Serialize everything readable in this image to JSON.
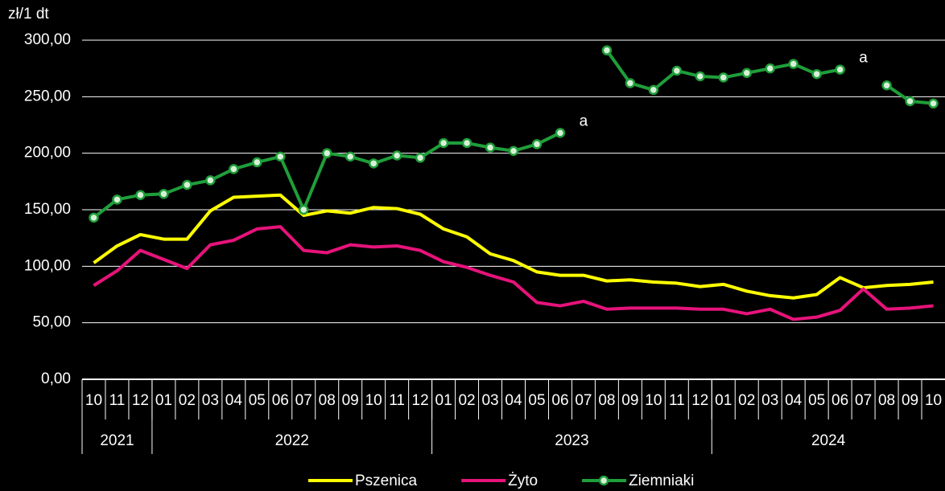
{
  "chart_data": {
    "type": "line",
    "y_axis_label": "zł/1 dt",
    "categories": [
      "10",
      "11",
      "12",
      "01",
      "02",
      "03",
      "04",
      "05",
      "06",
      "07",
      "08",
      "09",
      "10",
      "11",
      "12",
      "01",
      "02",
      "03",
      "04",
      "05",
      "06",
      "07",
      "08",
      "09",
      "10",
      "11",
      "12",
      "01",
      "02",
      "03",
      "04",
      "05",
      "06",
      "07",
      "08",
      "09",
      "10"
    ],
    "year_groups": [
      {
        "label": "2021",
        "count": 3
      },
      {
        "label": "2022",
        "count": 12
      },
      {
        "label": "2023",
        "count": 12
      },
      {
        "label": "2024",
        "count": 10
      }
    ],
    "series": [
      {
        "name": "Pszenica",
        "color": "#ffff00",
        "values": [
          103,
          118,
          128,
          124,
          124,
          149,
          161,
          162,
          163,
          145,
          149,
          147,
          152,
          151,
          146,
          133,
          126,
          111,
          105,
          95,
          92,
          92,
          87,
          88,
          86,
          85,
          82,
          84,
          78,
          74,
          72,
          75,
          90,
          81,
          83,
          84,
          86
        ]
      },
      {
        "name": "Żyto",
        "color": "#e6137a",
        "values": [
          83,
          96,
          114,
          106,
          98,
          119,
          123,
          133,
          135,
          114,
          112,
          119,
          117,
          118,
          114,
          104,
          99,
          92,
          86,
          68,
          65,
          69,
          62,
          63,
          63,
          63,
          62,
          62,
          58,
          62,
          53,
          55,
          61,
          80,
          62,
          63,
          65
        ]
      },
      {
        "name": "Ziemniaki",
        "color": "#1f9e3a",
        "marker": "circle",
        "values": [
          143,
          159,
          163,
          164,
          172,
          176,
          186,
          192,
          197,
          150,
          200,
          197,
          191,
          198,
          196,
          209,
          209,
          205,
          202,
          208,
          218,
          null,
          291,
          262,
          256,
          273,
          268,
          267,
          271,
          275,
          279,
          270,
          274,
          null,
          260,
          246,
          244
        ],
        "value_labels": [
          null,
          null,
          null,
          null,
          null,
          null,
          null,
          null,
          null,
          null,
          null,
          null,
          null,
          null,
          null,
          null,
          null,
          null,
          null,
          null,
          null,
          "a",
          null,
          null,
          null,
          null,
          null,
          null,
          null,
          null,
          null,
          null,
          null,
          "a",
          null,
          null,
          null
        ]
      }
    ],
    "ylim": [
      0,
      300
    ],
    "yticks": [
      {
        "value": 0,
        "label": "0,00"
      },
      {
        "value": 50,
        "label": "50,00"
      },
      {
        "value": 100,
        "label": "100,00"
      },
      {
        "value": 150,
        "label": "150,00"
      },
      {
        "value": 200,
        "label": "200,00"
      },
      {
        "value": 250,
        "label": "250,00"
      },
      {
        "value": 300,
        "label": "300,00"
      }
    ],
    "grid": true,
    "legend": "bottom"
  }
}
